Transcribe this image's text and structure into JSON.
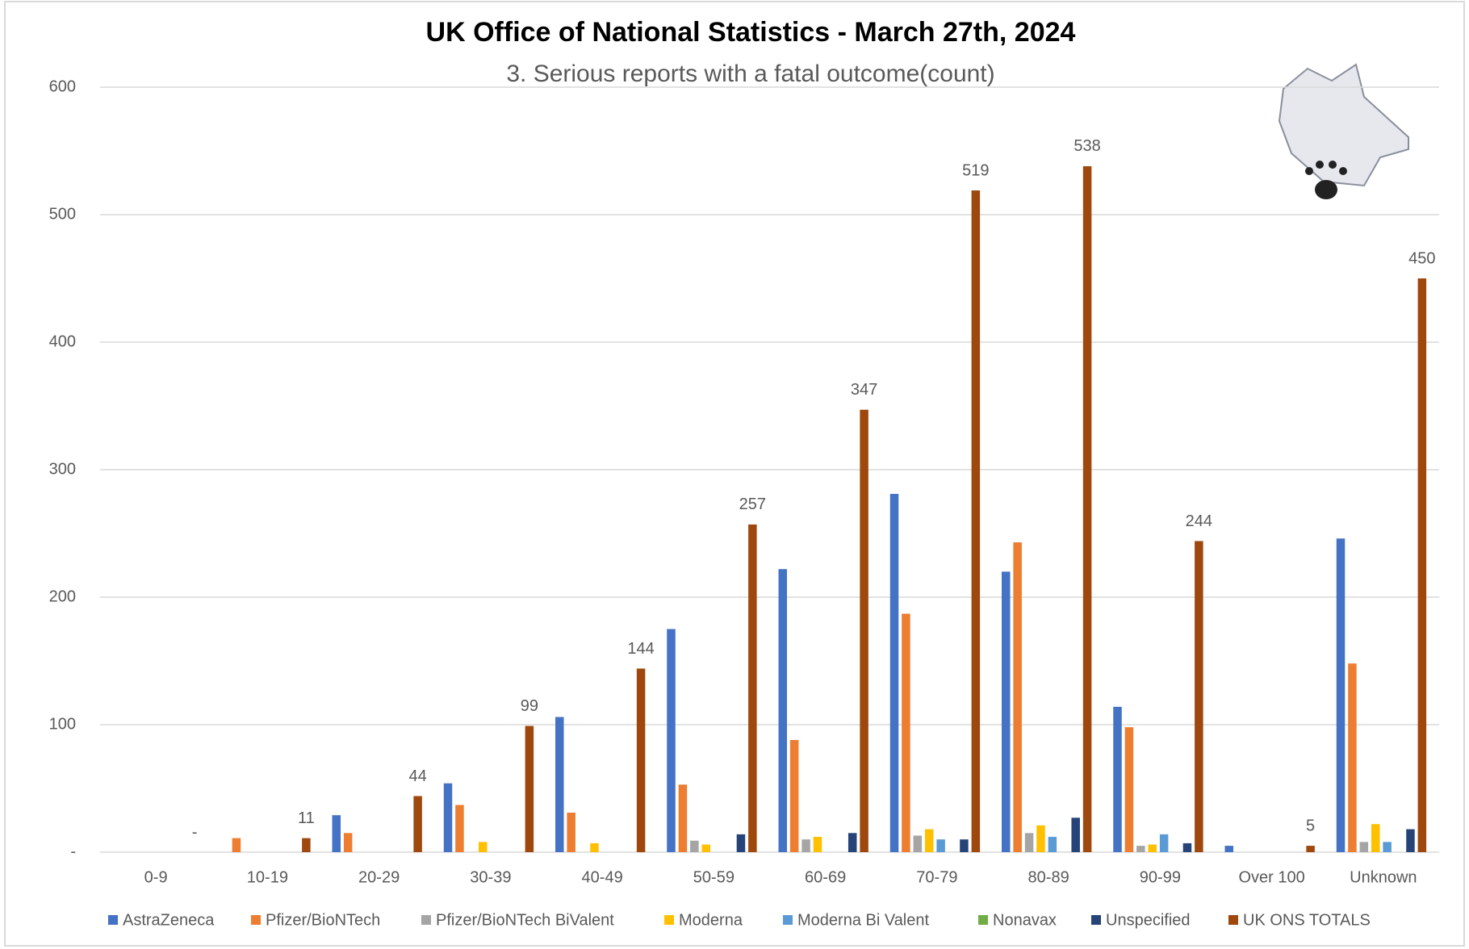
{
  "chart_data": {
    "type": "bar",
    "title": "UK Office of National Statistics - March 27th, 2024",
    "subtitle": "3. Serious reports with a fatal outcome(count)",
    "categories": [
      "0-9",
      "10-19",
      "20-29",
      "30-39",
      "40-49",
      "50-59",
      "60-69",
      "70-79",
      "80-89",
      "90-99",
      "Over 100",
      "Unknown"
    ],
    "series": [
      {
        "name": "AstraZeneca",
        "color": "#4472c4",
        "values": [
          null,
          null,
          29,
          54,
          106,
          175,
          222,
          281,
          220,
          114,
          5,
          246
        ]
      },
      {
        "name": "Pfizer/BioNTech",
        "color": "#ed7d31",
        "values": [
          null,
          11,
          15,
          37,
          31,
          53,
          88,
          187,
          243,
          98,
          null,
          148
        ]
      },
      {
        "name": "Pfizer/BioNTech BiValent",
        "color": "#a5a5a5",
        "values": [
          null,
          null,
          null,
          null,
          null,
          9,
          10,
          13,
          15,
          5,
          null,
          8
        ]
      },
      {
        "name": "Moderna",
        "color": "#ffc000",
        "values": [
          null,
          null,
          null,
          8,
          7,
          6,
          12,
          18,
          21,
          6,
          null,
          22
        ]
      },
      {
        "name": "Moderna Bi Valent",
        "color": "#5b9bd5",
        "values": [
          null,
          null,
          null,
          null,
          null,
          null,
          null,
          10,
          12,
          14,
          null,
          8
        ]
      },
      {
        "name": "Nonavax",
        "color": "#70ad47",
        "values": [
          null,
          null,
          null,
          null,
          null,
          null,
          null,
          null,
          null,
          null,
          null,
          null
        ]
      },
      {
        "name": "Unspecified",
        "color": "#264478",
        "values": [
          null,
          null,
          null,
          null,
          null,
          14,
          15,
          10,
          27,
          7,
          null,
          18
        ]
      },
      {
        "name": "UK ONS TOTALS",
        "color": "#9e480e",
        "values": [
          0,
          11,
          44,
          99,
          144,
          257,
          347,
          519,
          538,
          244,
          5,
          450
        ],
        "value_labels": [
          "-",
          null,
          null,
          null,
          null,
          null,
          null,
          null,
          null,
          null,
          null,
          null
        ]
      }
    ],
    "ylim": [
      0,
      600
    ],
    "yticks": [
      {
        "value": 0,
        "label": "-"
      },
      100,
      200,
      300,
      400,
      500,
      600
    ],
    "grid": true,
    "legend": "bottom"
  }
}
